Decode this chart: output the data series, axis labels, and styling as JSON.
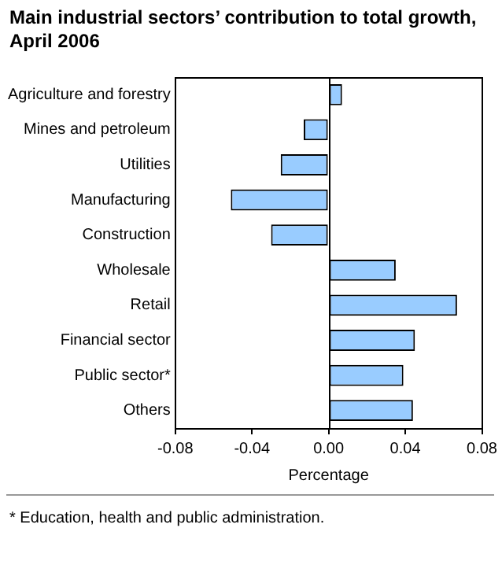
{
  "chart_data": {
    "type": "bar",
    "orientation": "horizontal",
    "title": "Main industrial sectors’ contribution to total growth, April 2006",
    "xlabel": "Percentage",
    "categories": [
      "Agriculture and forestry",
      "Mines and petroleum",
      "Utilities",
      "Manufacturing",
      "Construction",
      "Wholesale",
      "Retail",
      "Financial sector",
      "Public sector*",
      "Others"
    ],
    "values": [
      0.007,
      -0.013,
      -0.025,
      -0.051,
      -0.03,
      0.035,
      0.067,
      0.045,
      0.039,
      0.044
    ],
    "color": "#99ccff",
    "xlim": [
      -0.08,
      0.08
    ],
    "xticks": [
      -0.08,
      -0.04,
      {
        "value": 0,
        "label": "0.00"
      },
      0.04,
      0.08
    ],
    "grid": false,
    "legend": false,
    "ref_lines": [
      {
        "axis": "x",
        "value": 0,
        "color": "#000000"
      }
    ],
    "annotations": [
      "* Education, health and public administration."
    ]
  }
}
